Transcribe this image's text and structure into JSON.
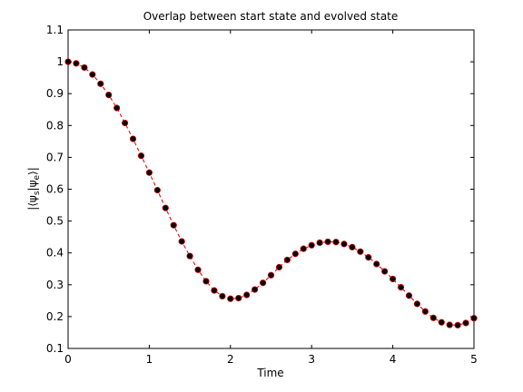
{
  "chart_data": {
    "type": "line",
    "title": "Overlap between start state and evolved state",
    "xlabel": "Time",
    "ylabel": "|⟨ψs|ψe⟩|",
    "ylabel_parts": {
      "open": "|⟨ψ",
      "sub1": "s",
      "mid": "|ψ",
      "sub2": "e",
      "close": "⟩|"
    },
    "xlim": [
      0,
      5
    ],
    "ylim": [
      0.1,
      1.1
    ],
    "xticks": [
      "0",
      "1",
      "2",
      "3",
      "4",
      "5"
    ],
    "yticks": [
      "0.1",
      "0.2",
      "0.3",
      "0.4",
      "0.5",
      "0.6",
      "0.7",
      "0.8",
      "0.9",
      "1",
      "1.1"
    ],
    "grid": false,
    "legend": "none",
    "series": [
      {
        "line_color": "#cc0000",
        "line_style": "dashed",
        "marker_color": "#000000",
        "marker_edge_color": "#cc0000",
        "x": [
          0,
          0.1,
          0.2,
          0.3,
          0.4,
          0.5,
          0.6,
          0.7,
          0.8,
          0.9,
          1.0,
          1.1,
          1.2,
          1.3,
          1.4,
          1.5,
          1.6,
          1.7,
          1.8,
          1.9,
          2.0,
          2.1,
          2.2,
          2.3,
          2.4,
          2.5,
          2.6,
          2.7,
          2.8,
          2.9,
          3.0,
          3.1,
          3.2,
          3.3,
          3.4,
          3.5,
          3.6,
          3.7,
          3.8,
          3.9,
          4.0,
          4.1,
          4.2,
          4.3,
          4.4,
          4.5,
          4.6,
          4.7,
          4.8,
          4.9,
          5.0
        ],
        "y": [
          1.0,
          0.995,
          0.982,
          0.96,
          0.931,
          0.896,
          0.855,
          0.808,
          0.758,
          0.705,
          0.652,
          0.597,
          0.541,
          0.487,
          0.436,
          0.39,
          0.347,
          0.311,
          0.282,
          0.264,
          0.256,
          0.258,
          0.268,
          0.285,
          0.306,
          0.33,
          0.355,
          0.378,
          0.397,
          0.413,
          0.424,
          0.432,
          0.435,
          0.434,
          0.428,
          0.418,
          0.404,
          0.386,
          0.365,
          0.342,
          0.318,
          0.292,
          0.266,
          0.24,
          0.216,
          0.196,
          0.182,
          0.174,
          0.173,
          0.18,
          0.195
        ]
      }
    ]
  }
}
